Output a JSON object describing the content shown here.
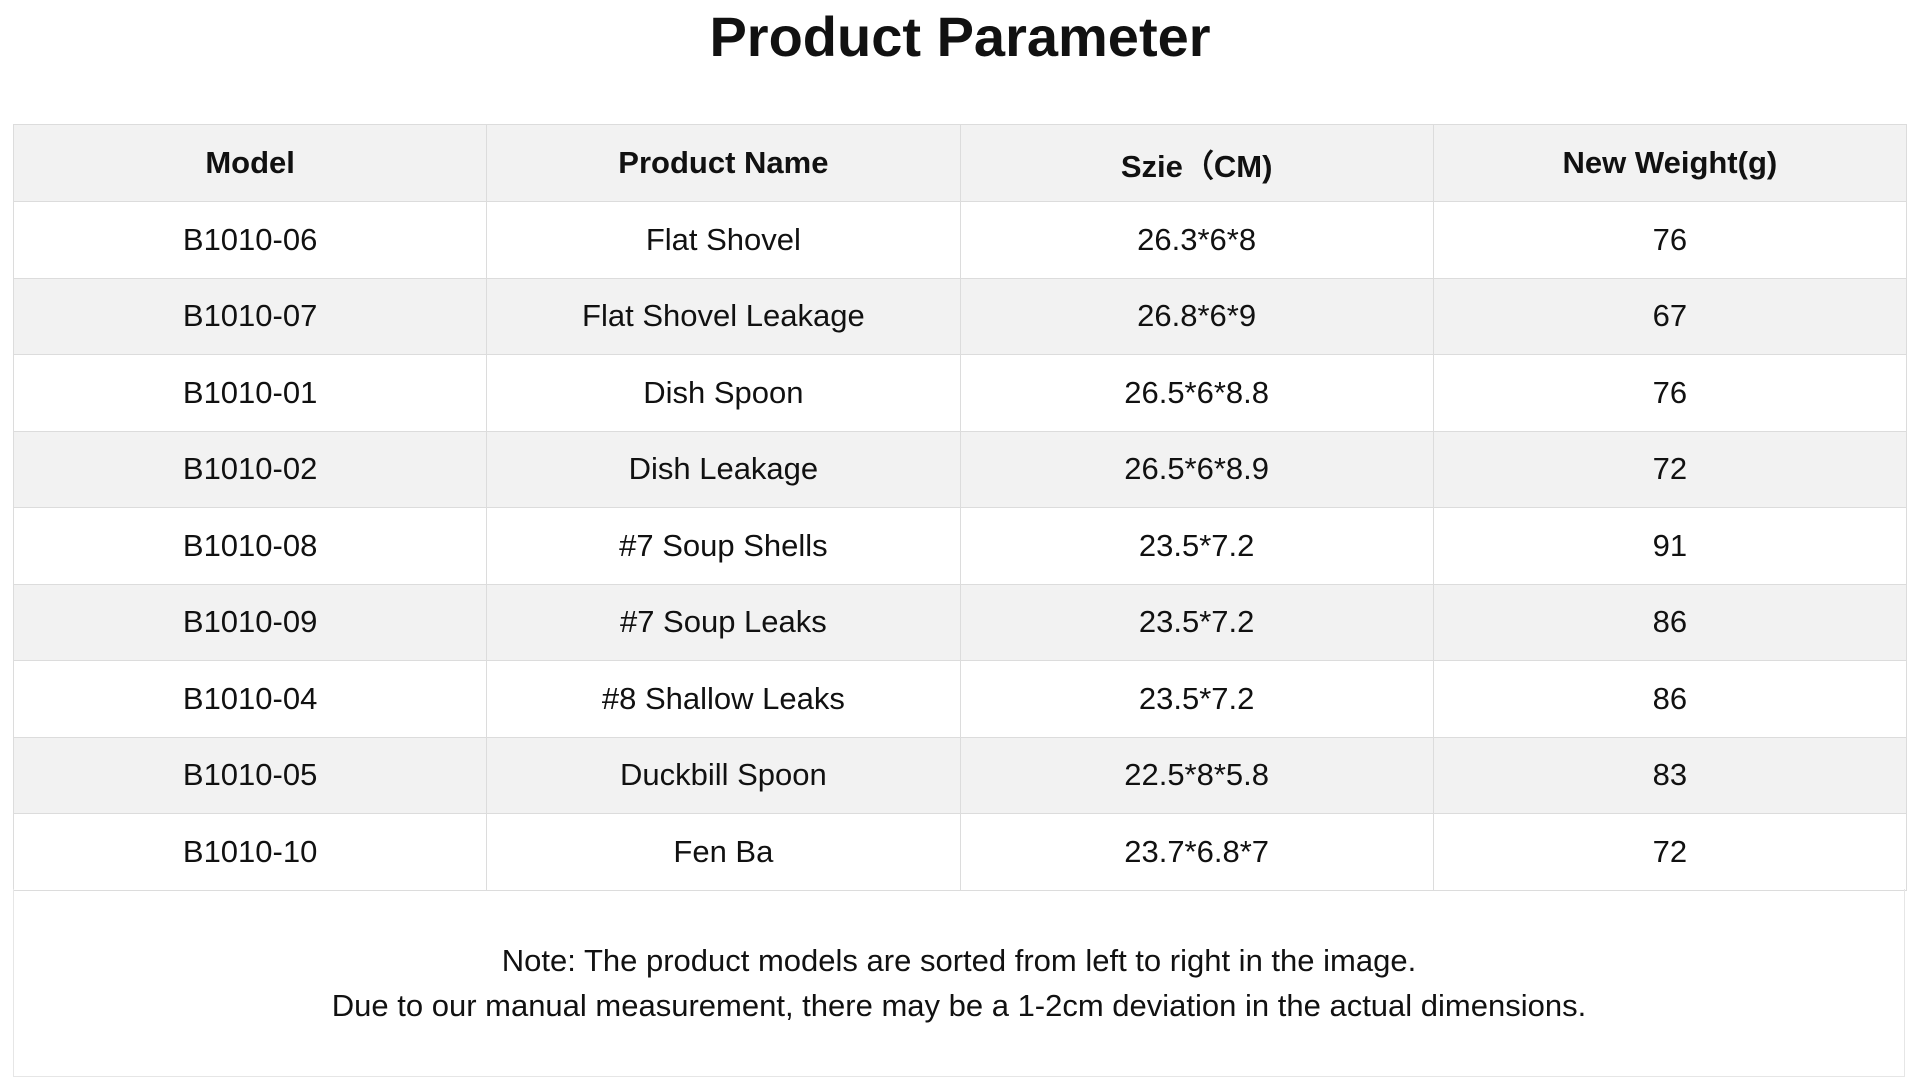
{
  "title": "Product Parameter",
  "table": {
    "headers": [
      "Model",
      "Product Name",
      "Szie（CM)",
      "New Weight(g)"
    ],
    "rows": [
      [
        "B1010-06",
        "Flat Shovel",
        "26.3*6*8",
        "76"
      ],
      [
        "B1010-07",
        "Flat Shovel Leakage",
        "26.8*6*9",
        "67"
      ],
      [
        "B1010-01",
        "Dish Spoon",
        "26.5*6*8.8",
        "76"
      ],
      [
        "B1010-02",
        "Dish Leakage",
        "26.5*6*8.9",
        "72"
      ],
      [
        "B1010-08",
        "#7 Soup Shells",
        "23.5*7.2",
        "91"
      ],
      [
        "B1010-09",
        "#7 Soup Leaks",
        "23.5*7.2",
        "86"
      ],
      [
        "B1010-04",
        "#8 Shallow Leaks",
        "23.5*7.2",
        "86"
      ],
      [
        "B1010-05",
        "Duckbill Spoon",
        "22.5*8*5.8",
        "83"
      ],
      [
        "B1010-10",
        "Fen Ba",
        "23.7*6.8*7",
        "72"
      ]
    ]
  },
  "note": {
    "line1": "Note: The product models are sorted from left to right in the image.",
    "line2": "Due to our manual measurement, there may be a 1-2cm deviation in the actual dimensions."
  }
}
